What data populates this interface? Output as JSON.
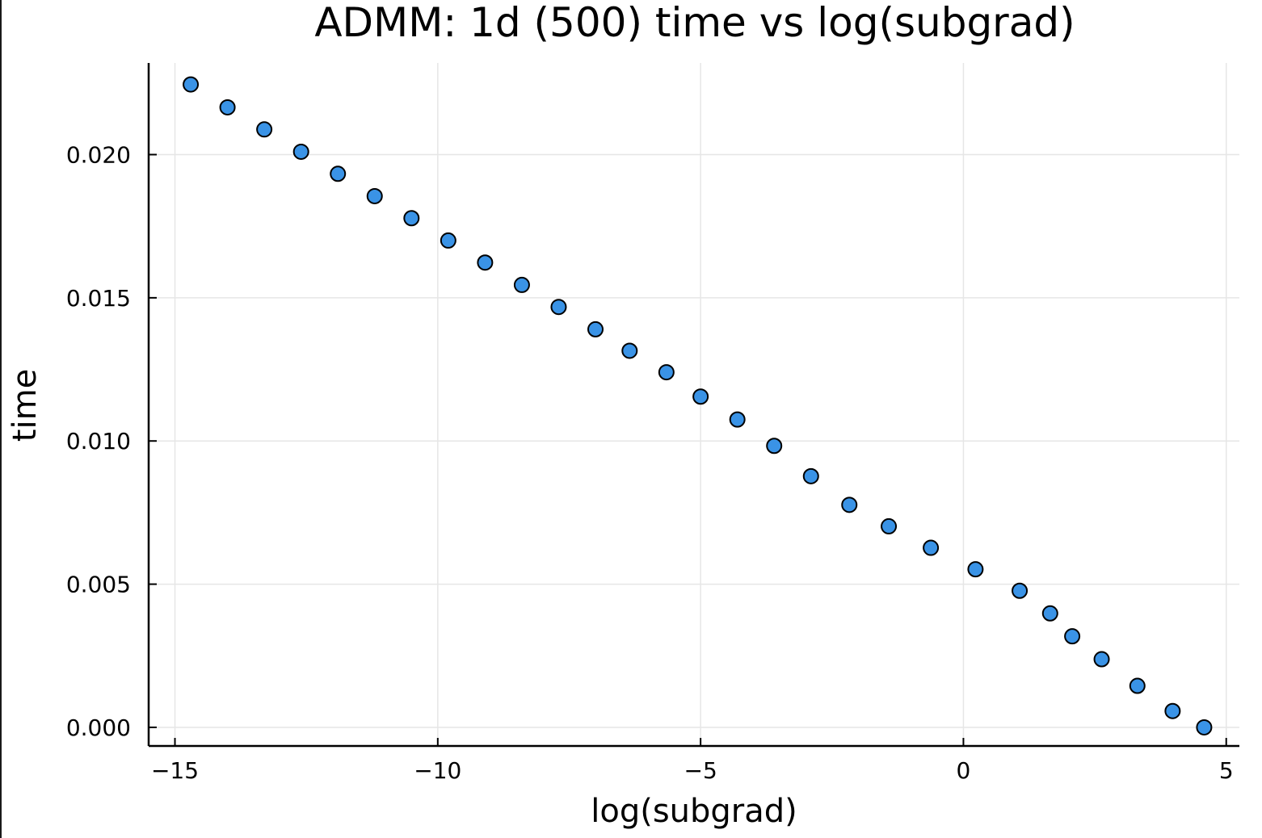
{
  "chart_data": {
    "type": "scatter",
    "title": "ADMM: 1d (500) time vs log(subgrad)",
    "xlabel": "log(subgrad)",
    "ylabel": "time",
    "xlim": [
      -15.5,
      5.25
    ],
    "ylim": [
      -0.00065,
      0.0232
    ],
    "xticks": [
      -15,
      -10,
      -5,
      0,
      5
    ],
    "xtick_labels": [
      "−15",
      "−10",
      "−5",
      "0",
      "5"
    ],
    "yticks": [
      0.0,
      0.005,
      0.01,
      0.015,
      0.02
    ],
    "ytick_labels": [
      "0.000",
      "0.005",
      "0.010",
      "0.015",
      "0.020"
    ],
    "grid": true,
    "legend": "none",
    "marker_color": "#3a93e6",
    "marker_edge_color": "#000000",
    "series": [
      {
        "x": [
          -14.7,
          -14.0,
          -13.3,
          -12.6,
          -11.9,
          -11.2,
          -10.5,
          -9.8,
          -9.1,
          -8.4,
          -7.7,
          -7.0,
          -6.35,
          -5.65,
          -5.0,
          -4.3,
          -3.6,
          -2.9,
          -2.17,
          -1.42,
          -0.62,
          0.23,
          1.07,
          1.65,
          2.07,
          2.63,
          3.31,
          3.98,
          4.58
        ],
        "y": [
          0.02245,
          0.02165,
          0.02088,
          0.0201,
          0.01933,
          0.01855,
          0.01778,
          0.017,
          0.01623,
          0.01545,
          0.01468,
          0.0139,
          0.01315,
          0.0124,
          0.01155,
          0.01075,
          0.00983,
          0.00877,
          0.00777,
          0.00702,
          0.00627,
          0.00552,
          0.00477,
          0.00398,
          0.00318,
          0.00238,
          0.00145,
          0.00057,
          0.0
        ]
      }
    ]
  }
}
